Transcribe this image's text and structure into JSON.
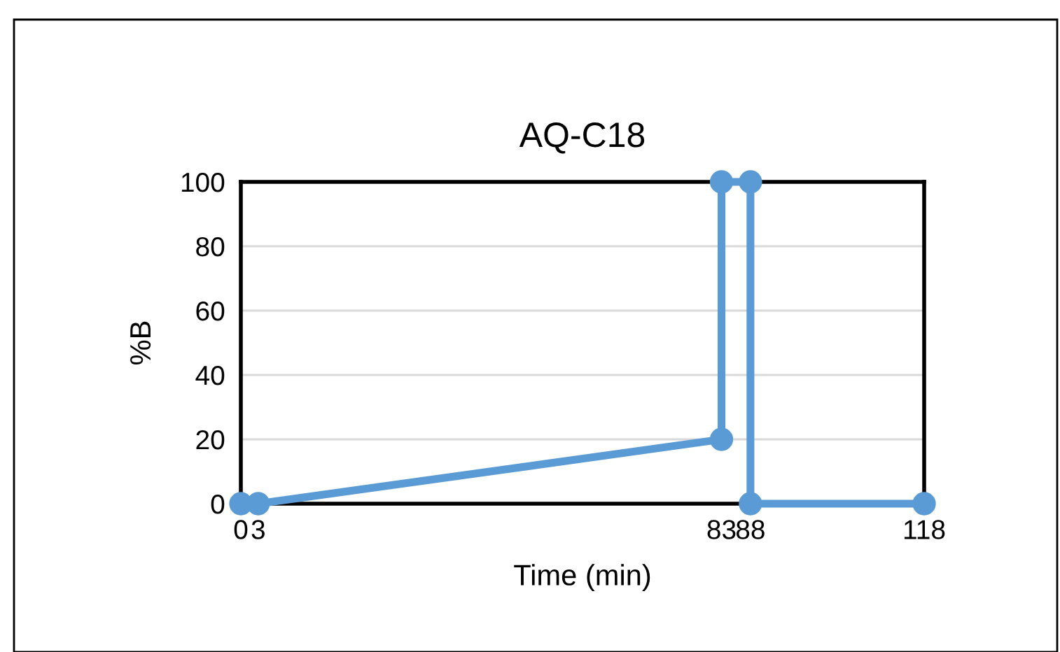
{
  "chart_data": {
    "type": "line",
    "title": "AQ-C18",
    "xlabel": "Time (min)",
    "ylabel": "%B",
    "x": [
      0,
      3,
      83,
      83,
      88,
      88,
      118
    ],
    "series": [
      {
        "color": "#5b9bd5",
        "values": [
          0,
          0,
          20,
          100,
          100,
          0,
          0
        ]
      }
    ],
    "xlim": [
      0,
      118
    ],
    "xticks": [
      0,
      3,
      83,
      88,
      118
    ],
    "ylim": [
      0,
      100
    ],
    "yticks": [
      0,
      20,
      40,
      60,
      80,
      100
    ],
    "grid": "y",
    "marker": "circle",
    "line_style": "solid",
    "legend": false
  }
}
